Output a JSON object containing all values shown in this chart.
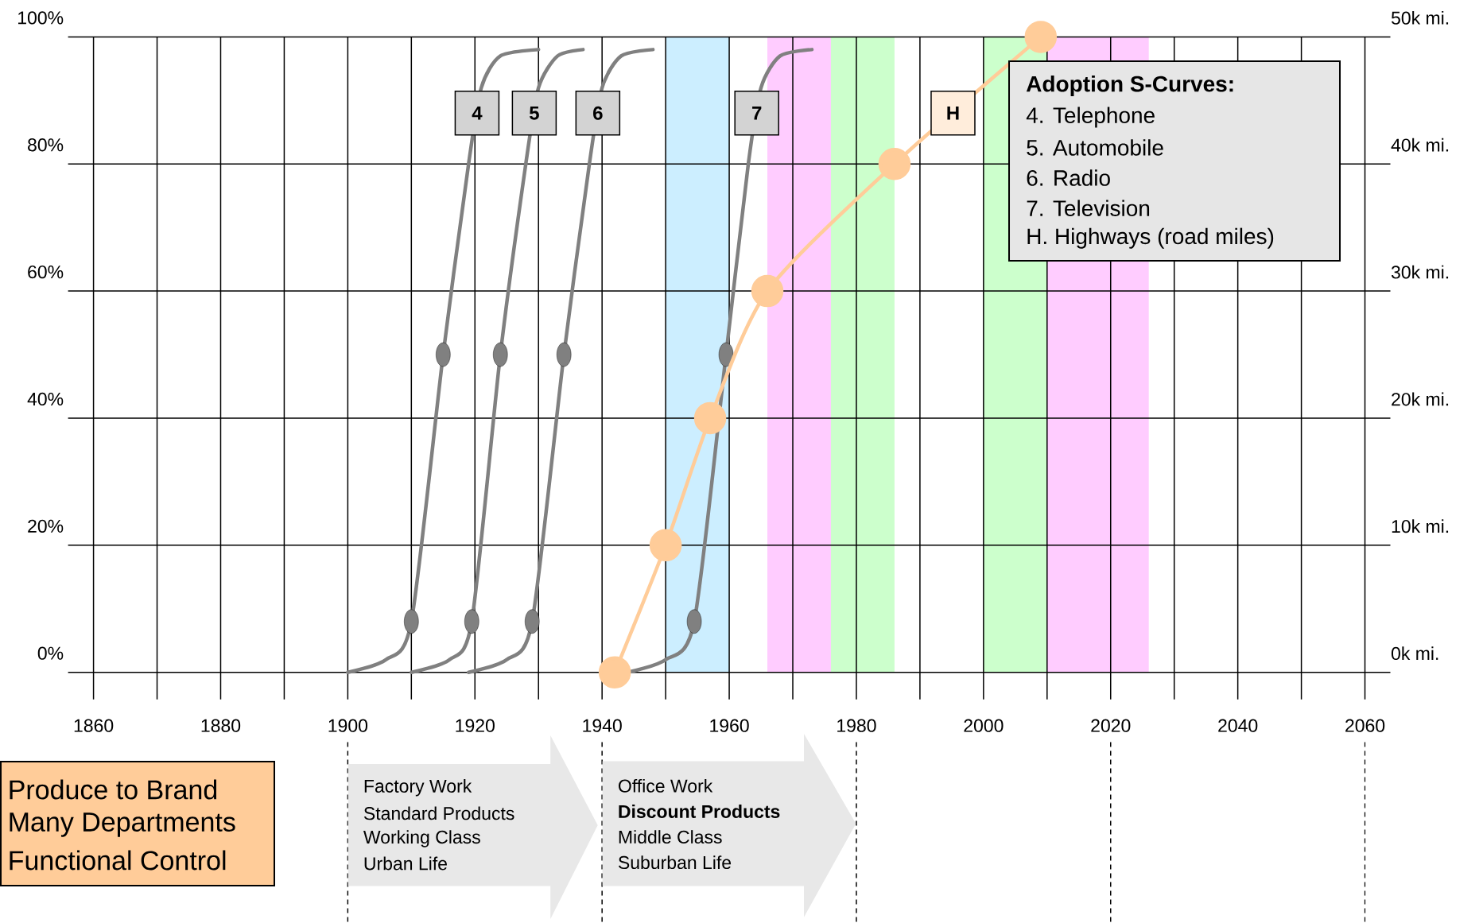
{
  "chart_data": {
    "type": "line",
    "xlim": [
      1856,
      2064
    ],
    "xticks": [
      1860,
      {
        "value": 1870,
        "label": null
      },
      1880,
      {
        "value": 1890,
        "label": null
      },
      1900,
      {
        "value": 1910,
        "label": null
      },
      1920,
      {
        "value": 1930,
        "label": null
      },
      1940,
      {
        "value": 1950,
        "label": null
      },
      1960,
      {
        "value": 1970,
        "label": null
      },
      1980,
      {
        "value": 1990,
        "label": null
      },
      2000,
      {
        "value": 2010,
        "label": null
      },
      2020,
      {
        "value": 2030,
        "label": null
      },
      2040,
      {
        "value": 2050,
        "label": null
      },
      2060
    ],
    "ylim": [
      0,
      100
    ],
    "yticks": [
      {
        "value": 0,
        "label": "0%"
      },
      {
        "value": 20,
        "label": "20%"
      },
      {
        "value": 40,
        "label": "40%"
      },
      {
        "value": 60,
        "label": "60%"
      },
      {
        "value": 80,
        "label": "80%"
      },
      {
        "value": 100,
        "label": "100%"
      }
    ],
    "y2lim": [
      0,
      50
    ],
    "y2ticks": [
      {
        "value": 0,
        "label": "0k mi."
      },
      {
        "value": 10,
        "label": "10k mi."
      },
      {
        "value": 20,
        "label": "20k mi."
      },
      {
        "value": 30,
        "label": "30k mi."
      },
      {
        "value": 40,
        "label": "40k mi."
      },
      {
        "value": 50,
        "label": "50k mi."
      }
    ],
    "grid": true,
    "bands": [
      {
        "axis": "x",
        "from": 1950,
        "to": 1960,
        "color": "#cceeff"
      },
      {
        "axis": "x",
        "from": 1966,
        "to": 1976,
        "color": "#ffccff"
      },
      {
        "axis": "x",
        "from": 1976,
        "to": 1986,
        "color": "#ccffcc"
      },
      {
        "axis": "x",
        "from": 2000,
        "to": 2010,
        "color": "#ccffcc"
      },
      {
        "axis": "x",
        "from": 2010,
        "to": 2026,
        "color": "#ffccff"
      }
    ],
    "series": [
      {
        "name": "4",
        "color": "#808080",
        "x": [
          1900,
          1906,
          1910,
          1915,
          1919,
          1921,
          1924,
          1930
        ],
        "values": [
          0,
          2,
          8,
          50,
          80,
          92,
          97,
          98
        ]
      },
      {
        "type": "scatter",
        "color": "#808080",
        "marker": "circle",
        "x": [
          1910,
          1915
        ],
        "values": [
          8,
          50
        ]
      },
      {
        "name": "5",
        "color": "#808080",
        "x": [
          1910,
          1916,
          1919.5,
          1924,
          1928,
          1930,
          1933,
          1937
        ],
        "values": [
          0,
          2,
          8,
          50,
          80,
          92,
          97,
          98
        ]
      },
      {
        "type": "scatter",
        "color": "#808080",
        "marker": "circle",
        "x": [
          1919.5,
          1924
        ],
        "values": [
          8,
          50
        ]
      },
      {
        "name": "6",
        "color": "#808080",
        "x": [
          1919,
          1925,
          1929,
          1934,
          1938,
          1940,
          1943,
          1948
        ],
        "values": [
          0,
          2,
          8,
          50,
          80,
          92,
          97,
          98
        ]
      },
      {
        "type": "scatter",
        "color": "#808080",
        "marker": "circle",
        "x": [
          1929,
          1934
        ],
        "values": [
          8,
          50
        ]
      },
      {
        "name": "7",
        "color": "#808080",
        "x": [
          1944,
          1950,
          1954.5,
          1959.5,
          1963,
          1965,
          1968,
          1973
        ],
        "values": [
          0,
          2,
          8,
          50,
          80,
          92,
          97,
          98
        ]
      },
      {
        "type": "scatter",
        "color": "#808080",
        "marker": "circle",
        "x": [
          1954.5,
          1959.5
        ],
        "values": [
          8,
          50
        ]
      },
      {
        "name": "H",
        "color": "#ffcc99",
        "axis": "y2",
        "marker": "circle",
        "x": [
          1942,
          1950,
          1957,
          1966,
          1986,
          2009
        ],
        "values": [
          0,
          10,
          20,
          30,
          40,
          50
        ]
      }
    ],
    "annotations": [
      "Adoption S-Curves:",
      "4. Telephone",
      "5. Automobile",
      "6. Radio",
      "7. Television",
      "H. Highways (road miles)",
      "Produce to Brand",
      "Many Departments",
      "Functional Control",
      "Factory Work",
      "Standard Products",
      "Working Class",
      "Urban Life",
      "Office Work",
      "Discount Products",
      "Middle Class",
      "Suburban Life"
    ]
  }
}
